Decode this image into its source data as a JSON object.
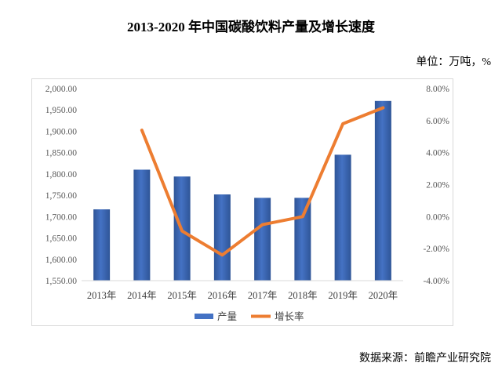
{
  "header": {
    "title": "2013-2020 年中国碳酸饮料产量及增长速度",
    "unit": "单位：万吨，%"
  },
  "footer": {
    "source": "数据来源：前瞻产业研究院"
  },
  "colors": {
    "bar": "#4472C4",
    "line": "#ED7D31"
  },
  "chart_data": {
    "type": "bar",
    "categories": [
      "2013年",
      "2014年",
      "2015年",
      "2016年",
      "2017年",
      "2018年",
      "2019年",
      "2020年"
    ],
    "series": [
      {
        "name": "产量",
        "type": "bar",
        "axis": "left",
        "values": [
          1717,
          1810,
          1794,
          1752,
          1744,
          1744,
          1845,
          1971
        ]
      },
      {
        "name": "增长率",
        "type": "line",
        "axis": "right",
        "values": [
          null,
          5.4,
          -0.9,
          -2.4,
          -0.5,
          0.0,
          5.8,
          6.8
        ]
      }
    ],
    "y_left": {
      "ylim": [
        1550,
        2000
      ],
      "ticks": [
        "1,550.00",
        "1,600.00",
        "1,650.00",
        "1,700.00",
        "1,750.00",
        "1,800.00",
        "1,850.00",
        "1,900.00",
        "1,950.00",
        "2,000.00"
      ]
    },
    "y_right": {
      "ylim": [
        -4,
        8
      ],
      "ticks": [
        "-4.00%",
        "-2.00%",
        "0.00%",
        "2.00%",
        "4.00%",
        "6.00%",
        "8.00%"
      ]
    },
    "grid": false,
    "legend": "bottom"
  }
}
